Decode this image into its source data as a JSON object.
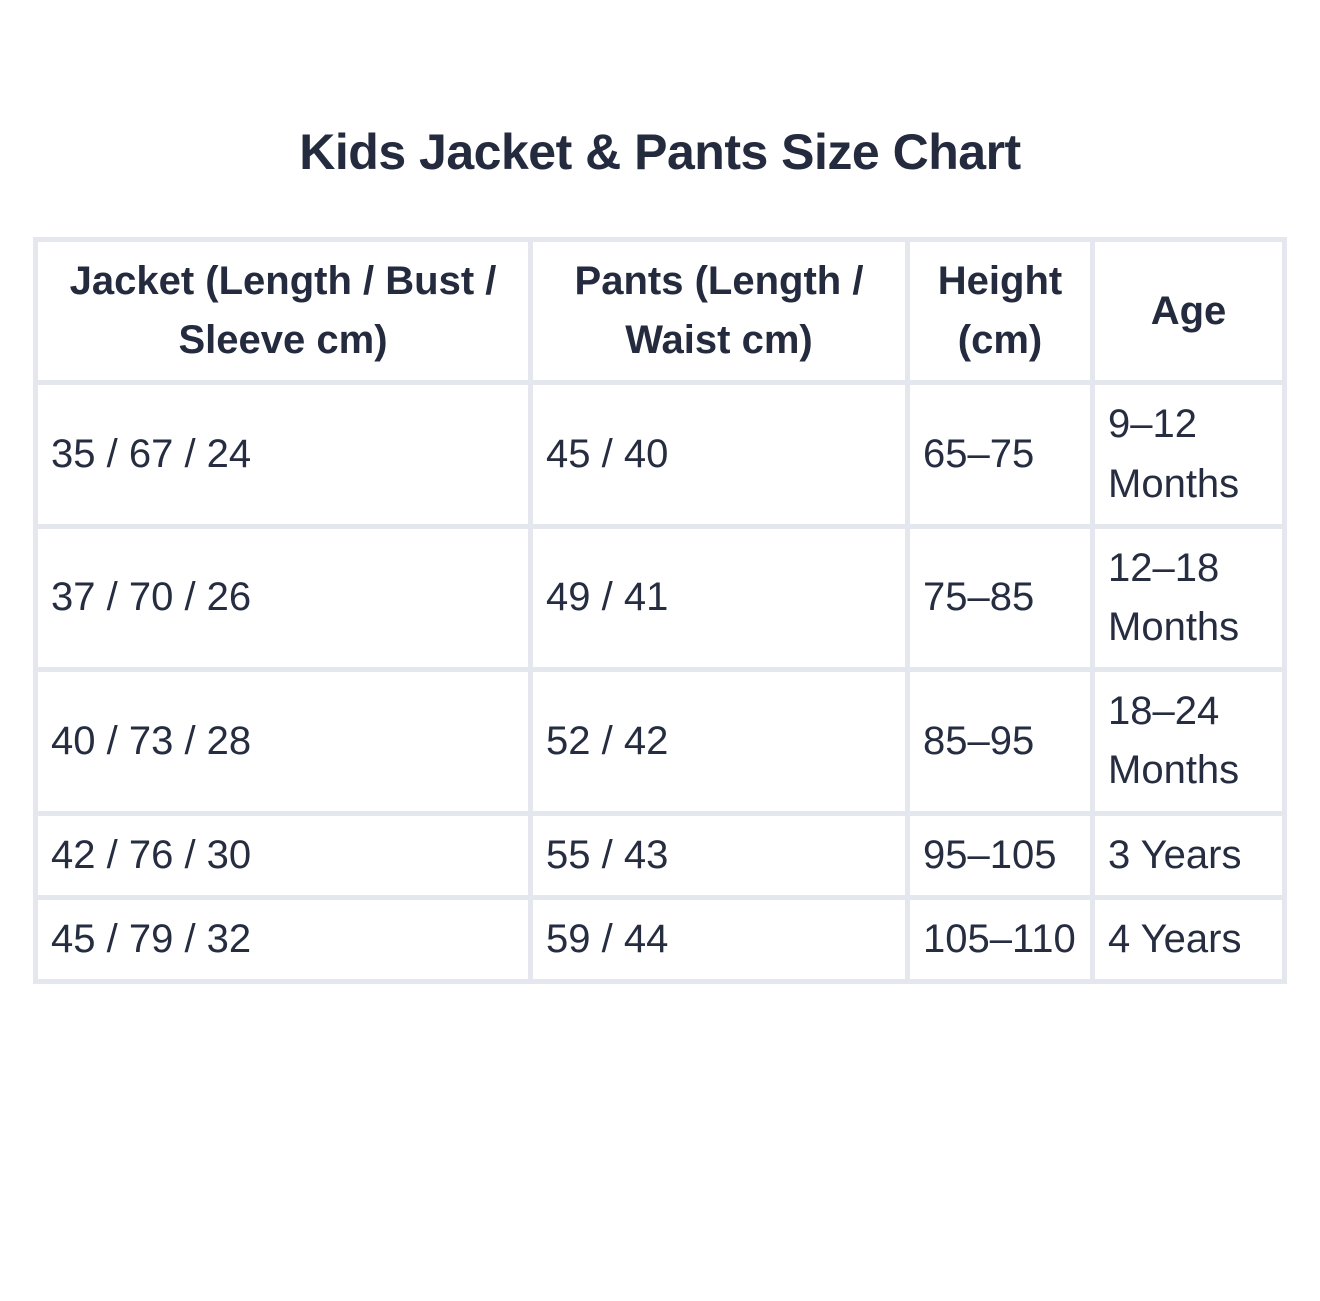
{
  "title": "Kids Jacket & Pants Size Chart",
  "colors": {
    "page_background": "#ffffff",
    "cell_background": "#ffffff",
    "grid_line": "#e4e7ed",
    "text": "#262d40"
  },
  "chart_data": {
    "type": "table",
    "title": "Kids Jacket & Pants Size Chart",
    "columns": [
      "Jacket (Length / Bust / Sleeve cm)",
      "Pants (Length / Waist cm)",
      "Height (cm)",
      "Age"
    ],
    "rows": [
      [
        "35 / 67 / 24",
        "45 / 40",
        "65–75",
        "9–12 Months"
      ],
      [
        "37 / 70 / 26",
        "49 / 41",
        "75–85",
        "12–18 Months"
      ],
      [
        "40 / 73 / 28",
        "52 / 42",
        "85–95",
        "18–24 Months"
      ],
      [
        "42 / 76 / 30",
        "55 / 43",
        "95–105",
        "3 Years"
      ],
      [
        "45 / 79 / 32",
        "59 / 44",
        "105–110",
        "4 Years"
      ]
    ]
  }
}
